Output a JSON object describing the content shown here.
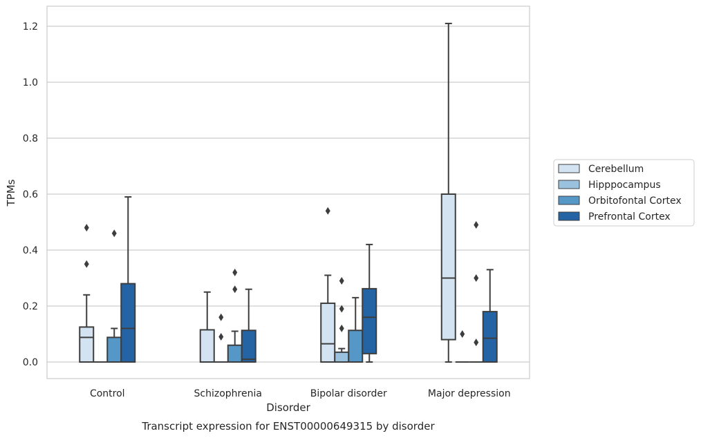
{
  "chart_data": {
    "type": "box",
    "title": "",
    "caption": "Transcript expression for ENST00000649315 by disorder",
    "xlabel": "Disorder",
    "ylabel": "TPMs",
    "ylim": [
      -0.06,
      1.27
    ],
    "yticks": [
      "0.0",
      "0.2",
      "0.4",
      "0.6",
      "0.8",
      "1.0",
      "1.2"
    ],
    "grid": "horizontal",
    "legend_position": "right",
    "categories": [
      "Control",
      "Schizophrenia",
      "Bipolar disorder",
      "Major depression"
    ],
    "series": [
      {
        "name": "Cerebellum",
        "color": "#d3e3f1",
        "boxes": [
          {
            "whislo": 0.0,
            "q1": 0.0,
            "med": 0.088,
            "q3": 0.125,
            "whishi": 0.24,
            "fliers": [
              0.35,
              0.48
            ]
          },
          {
            "whislo": 0.0,
            "q1": 0.0,
            "med": 0.0,
            "q3": 0.115,
            "whishi": 0.25,
            "fliers": []
          },
          {
            "whislo": 0.0,
            "q1": 0.0,
            "med": 0.065,
            "q3": 0.21,
            "whishi": 0.31,
            "fliers": [
              0.54
            ]
          },
          {
            "whislo": 0.0,
            "q1": 0.08,
            "med": 0.3,
            "q3": 0.6,
            "whishi": 1.21,
            "fliers": []
          }
        ]
      },
      {
        "name": "Hipppocampus",
        "color": "#9ac2de",
        "boxes": [
          {
            "whislo": 0.0,
            "q1": 0.0,
            "med": 0.0,
            "q3": 0.0,
            "whishi": 0.0,
            "fliers": []
          },
          {
            "whislo": 0.0,
            "q1": 0.0,
            "med": 0.0,
            "q3": 0.0,
            "whishi": 0.0,
            "fliers": [
              0.09,
              0.16
            ]
          },
          {
            "whislo": 0.0,
            "q1": 0.0,
            "med": 0.0,
            "q3": 0.035,
            "whishi": 0.048,
            "fliers": [
              0.12,
              0.19,
              0.29
            ]
          },
          {
            "whislo": 0.0,
            "q1": 0.0,
            "med": 0.0,
            "q3": 0.0,
            "whishi": 0.0,
            "fliers": [
              0.1
            ]
          }
        ]
      },
      {
        "name": "Orbitofontal Cortex",
        "color": "#5597c6",
        "boxes": [
          {
            "whislo": 0.0,
            "q1": 0.0,
            "med": 0.0,
            "q3": 0.088,
            "whishi": 0.12,
            "fliers": [
              0.46
            ]
          },
          {
            "whislo": 0.0,
            "q1": 0.0,
            "med": 0.0,
            "q3": 0.06,
            "whishi": 0.11,
            "fliers": [
              0.26,
              0.32
            ]
          },
          {
            "whislo": 0.0,
            "q1": 0.0,
            "med": 0.0,
            "q3": 0.113,
            "whishi": 0.23,
            "fliers": []
          },
          {
            "whislo": 0.0,
            "q1": 0.0,
            "med": 0.0,
            "q3": 0.0,
            "whishi": 0.0,
            "fliers": [
              0.07,
              0.3,
              0.49
            ]
          }
        ]
      },
      {
        "name": "Prefrontal Cortex",
        "color": "#2464a5",
        "boxes": [
          {
            "whislo": 0.0,
            "q1": 0.0,
            "med": 0.12,
            "q3": 0.28,
            "whishi": 0.59,
            "fliers": []
          },
          {
            "whislo": 0.0,
            "q1": 0.0,
            "med": 0.01,
            "q3": 0.113,
            "whishi": 0.26,
            "fliers": []
          },
          {
            "whislo": 0.0,
            "q1": 0.03,
            "med": 0.16,
            "q3": 0.262,
            "whishi": 0.42,
            "fliers": []
          },
          {
            "whislo": 0.0,
            "q1": 0.0,
            "med": 0.085,
            "q3": 0.18,
            "whishi": 0.33,
            "fliers": []
          }
        ]
      }
    ]
  }
}
